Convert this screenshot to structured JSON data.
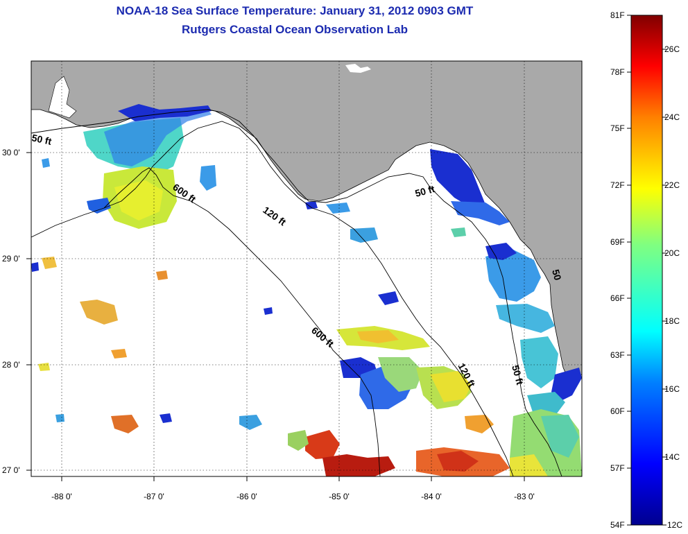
{
  "header": {
    "title_line1": "NOAA-18 Sea Surface Temperature:  January 31, 2012 0903 GMT",
    "title_line2": "Rutgers Coastal Ocean Observation Lab"
  },
  "map": {
    "lon_ticks": [
      "-88 0'",
      "-87 0'",
      "-86 0'",
      "-85 0'",
      "-84 0'",
      "-83 0'"
    ],
    "lat_ticks": [
      "30 0'",
      "29 0'",
      "28 0'",
      "27 0'"
    ],
    "contour_labels": [
      "50 ft",
      "600 ft",
      "120 ft",
      "50 ft",
      "600 ft",
      "120 ft",
      "50 ft",
      "50"
    ],
    "colors": {
      "land": "#a9a9a9",
      "water_nodata": "#ffffff"
    }
  },
  "colorbar": {
    "fahrenheit_labels": [
      "81F",
      "78F",
      "75F",
      "72F",
      "69F",
      "66F",
      "63F",
      "60F",
      "57F",
      "54F"
    ],
    "celsius_labels": [
      "26C",
      "24C",
      "22C",
      "20C",
      "18C",
      "16C",
      "14C",
      "12C"
    ],
    "colors": [
      "#00008f",
      "#0000ff",
      "#0080ff",
      "#00ffff",
      "#80ff80",
      "#ffff00",
      "#ff8000",
      "#ff0000",
      "#800000"
    ]
  }
}
